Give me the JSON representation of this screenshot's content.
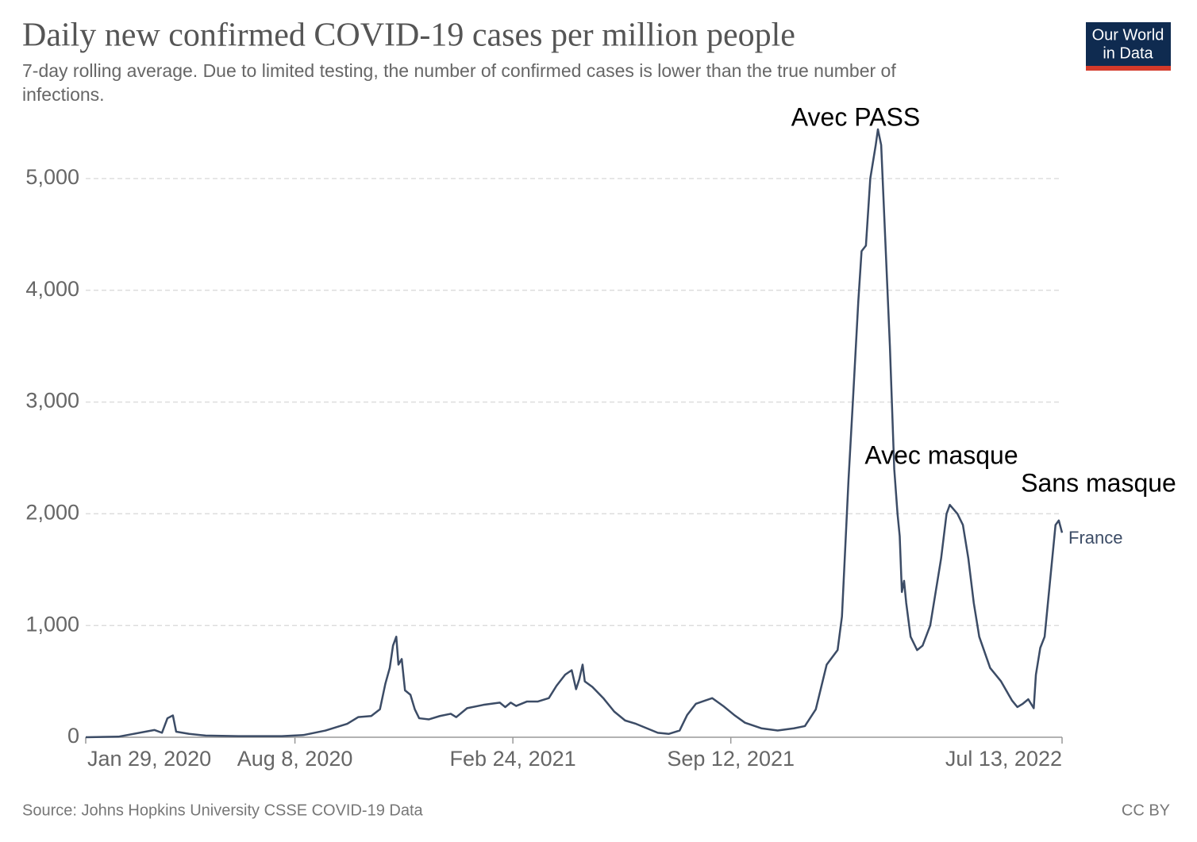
{
  "logo": [
    "Our World",
    "in Data"
  ],
  "chart_data": {
    "type": "line",
    "title": "Daily new confirmed COVID-19 cases per million people",
    "subtitle": [
      "7-day rolling average. Due to limited testing, the number of confirmed cases is lower than the true number of",
      "infections."
    ],
    "source": "Source: Johns Hopkins University CSSE COVID-19 Data",
    "license": "CC BY",
    "annotations": [
      "Avec PASS",
      "Avec masque",
      "Sans masque"
    ],
    "grid": true,
    "xlim": [
      "2020-01-29",
      "2022-07-13"
    ],
    "xticks": [
      {
        "value": "2020-01-29",
        "label": "Jan 29, 2020"
      },
      {
        "value": "2020-08-08",
        "label": "Aug 8, 2020"
      },
      {
        "value": "2021-02-24",
        "label": "Feb 24, 2021"
      },
      {
        "value": "2021-09-12",
        "label": "Sep 12, 2021"
      },
      {
        "value": "2022-07-13",
        "label": "Jul 13, 2022"
      }
    ],
    "ylim": [
      0,
      5500
    ],
    "yticks": [
      0,
      {
        "value": 1000,
        "label": "1,000"
      },
      {
        "value": 2000,
        "label": "2,000"
      },
      {
        "value": 3000,
        "label": "3,000"
      },
      {
        "value": 4000,
        "label": "4,000"
      },
      {
        "value": 5000,
        "label": "5,000"
      }
    ],
    "x": [
      "2020-01-29",
      "2020-02-28",
      "2020-04-01",
      "2020-04-08",
      "2020-04-13",
      "2020-04-18",
      "2020-04-21",
      "2020-05-03",
      "2020-05-18",
      "2020-06-17",
      "2020-07-27",
      "2020-08-16",
      "2020-09-05",
      "2020-09-25",
      "2020-10-05",
      "2020-10-17",
      "2020-10-25",
      "2020-10-30",
      "2020-11-03",
      "2020-11-06",
      "2020-11-09",
      "2020-11-11",
      "2020-11-14",
      "2020-11-17",
      "2020-11-22",
      "2020-11-26",
      "2020-11-30",
      "2020-12-09",
      "2020-12-19",
      "2020-12-29",
      "2021-01-03",
      "2021-01-13",
      "2021-01-28",
      "2021-02-12",
      "2021-02-17",
      "2021-02-22",
      "2021-02-27",
      "2021-03-09",
      "2021-03-19",
      "2021-03-29",
      "2021-04-05",
      "2021-04-13",
      "2021-04-19",
      "2021-04-23",
      "2021-04-26",
      "2021-04-29",
      "2021-05-01",
      "2021-05-08",
      "2021-05-18",
      "2021-05-28",
      "2021-06-07",
      "2021-06-17",
      "2021-06-27",
      "2021-07-07",
      "2021-07-17",
      "2021-07-27",
      "2021-08-03",
      "2021-08-11",
      "2021-08-26",
      "2021-09-05",
      "2021-09-15",
      "2021-09-25",
      "2021-10-10",
      "2021-10-25",
      "2021-11-09",
      "2021-11-19",
      "2021-11-29",
      "2021-12-09",
      "2021-12-19",
      "2021-12-23",
      "2021-12-29",
      "2022-01-02",
      "2022-01-07",
      "2022-01-10",
      "2022-01-14",
      "2022-01-18",
      "2022-01-23",
      "2022-01-25",
      "2022-01-28",
      "2022-02-01",
      "2022-02-05",
      "2022-02-09",
      "2022-02-12",
      "2022-02-14",
      "2022-02-16",
      "2022-02-18",
      "2022-02-20",
      "2022-02-24",
      "2022-03-02",
      "2022-03-07",
      "2022-03-14",
      "2022-03-19",
      "2022-03-24",
      "2022-03-29",
      "2022-04-01",
      "2022-04-08",
      "2022-04-13",
      "2022-04-18",
      "2022-04-23",
      "2022-04-28",
      "2022-05-08",
      "2022-05-18",
      "2022-05-28",
      "2022-06-02",
      "2022-06-07",
      "2022-06-12",
      "2022-06-17",
      "2022-06-19",
      "2022-06-23",
      "2022-06-27",
      "2022-07-02",
      "2022-07-07",
      "2022-07-10",
      "2022-07-13"
    ],
    "series": [
      {
        "name": "France",
        "color": "#3c4c66",
        "values": [
          0,
          5,
          65,
          40,
          170,
          195,
          50,
          30,
          15,
          10,
          10,
          20,
          60,
          120,
          180,
          190,
          250,
          480,
          620,
          820,
          900,
          650,
          700,
          420,
          380,
          250,
          170,
          160,
          190,
          210,
          180,
          260,
          290,
          310,
          270,
          310,
          280,
          320,
          320,
          350,
          460,
          560,
          600,
          430,
          520,
          650,
          500,
          450,
          350,
          230,
          150,
          120,
          80,
          40,
          30,
          60,
          200,
          300,
          350,
          280,
          200,
          130,
          80,
          60,
          80,
          100,
          250,
          650,
          780,
          1080,
          2300,
          3000,
          3900,
          4350,
          4400,
          5000,
          5300,
          5440,
          5300,
          4400,
          3500,
          2400,
          2000,
          1800,
          1300,
          1400,
          1200,
          900,
          780,
          820,
          1000,
          1300,
          1600,
          2000,
          2080,
          2000,
          1900,
          1600,
          1200,
          900,
          620,
          500,
          330,
          270,
          300,
          340,
          260,
          560,
          800,
          900,
          1400,
          1900,
          1940,
          1830
        ]
      }
    ]
  }
}
